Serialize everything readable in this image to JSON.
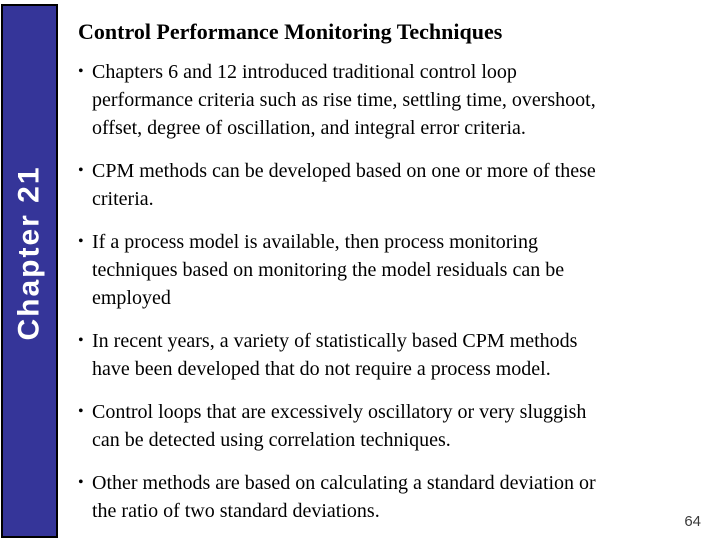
{
  "slide": {
    "title": "Control Performance Monitoring Techniques",
    "bullet_char": "•",
    "bullets": [
      "Chapters 6 and 12 introduced traditional control loop\nperformance criteria such as rise time, settling time, overshoot,\noffset, degree of oscillation, and integral error criteria.",
      "CPM methods can be developed based on one or more of these\ncriteria.",
      "If a process model is available, then process monitoring\ntechniques based on monitoring the model residuals can be\nemployed",
      "In recent years, a variety of statistically based CPM methods\nhave been developed that do not require a process model.",
      "Control loops that are excessively oscillatory or very sluggish\ncan be detected using correlation techniques.",
      "Other methods are based on calculating a standard deviation or\nthe ratio of two standard deviations."
    ],
    "page_number": "64"
  },
  "sidebar": {
    "label": "Chapter 21",
    "background_color": "#353599",
    "border_color": "#000000",
    "text_color": "#ffffff"
  },
  "colors": {
    "slide_background": "#ffffff",
    "body_text": "#000000",
    "page_number_text": "#3a3a3a"
  }
}
